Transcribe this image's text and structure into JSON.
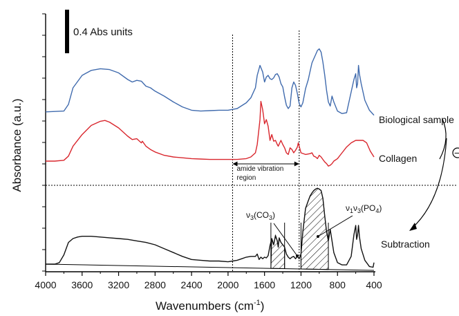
{
  "chart_data": {
    "type": "line",
    "xlabel_main": "Wavenumbers (cm",
    "xlabel_sup": "-1",
    "xlabel_end": ")",
    "ylabel": "Absorbance (a.u.)",
    "xlim": [
      4000,
      400
    ],
    "x_reversed": true,
    "xticks": [
      "4000",
      "3600",
      "3200",
      "2800",
      "2400",
      "2000",
      "1600",
      "1200",
      "800",
      "400"
    ],
    "scale_bar_label": "0.4 Abs units",
    "amide_label_1": "amide vibration",
    "amide_label_2": "region",
    "amide_region": [
      1950,
      1220
    ],
    "co3_label": "ν3(CO3)",
    "co3_region": [
      1530,
      1380
    ],
    "po4_label": "ν1ν3(PO4)",
    "po4_region": [
      1200,
      900
    ],
    "operator_symbol": "−",
    "series": [
      {
        "name": "Biological sample",
        "color": "#3f6aad",
        "x": [
          4000,
          3900,
          3800,
          3750,
          3700,
          3600,
          3500,
          3400,
          3300,
          3200,
          3100,
          3050,
          3000,
          2950,
          2900,
          2850,
          2800,
          2700,
          2600,
          2500,
          2400,
          2300,
          2200,
          2100,
          2000,
          1950,
          1900,
          1800,
          1750,
          1700,
          1680,
          1650,
          1620,
          1600,
          1580,
          1560,
          1540,
          1520,
          1500,
          1480,
          1460,
          1440,
          1420,
          1400,
          1380,
          1360,
          1340,
          1320,
          1300,
          1280,
          1260,
          1240,
          1220,
          1200,
          1180,
          1150,
          1120,
          1100,
          1080,
          1060,
          1040,
          1020,
          1000,
          980,
          960,
          940,
          920,
          900,
          880,
          860,
          840,
          800,
          750,
          700,
          650,
          620,
          600,
          590,
          580,
          570,
          560,
          540,
          500,
          450,
          400
        ],
        "y": [
          0.16,
          0.165,
          0.17,
          0.25,
          0.45,
          0.6,
          0.66,
          0.68,
          0.67,
          0.63,
          0.55,
          0.52,
          0.54,
          0.53,
          0.47,
          0.45,
          0.41,
          0.35,
          0.28,
          0.22,
          0.18,
          0.17,
          0.175,
          0.18,
          0.18,
          0.19,
          0.2,
          0.27,
          0.33,
          0.45,
          0.6,
          0.72,
          0.64,
          0.52,
          0.58,
          0.6,
          0.56,
          0.55,
          0.57,
          0.61,
          0.62,
          0.58,
          0.5,
          0.46,
          0.34,
          0.24,
          0.2,
          0.23,
          0.45,
          0.52,
          0.48,
          0.38,
          0.26,
          0.22,
          0.27,
          0.44,
          0.55,
          0.65,
          0.75,
          0.8,
          0.85,
          0.9,
          0.92,
          0.88,
          0.76,
          0.6,
          0.42,
          0.28,
          0.23,
          0.35,
          0.28,
          0.17,
          0.14,
          0.15,
          0.4,
          0.55,
          0.62,
          0.45,
          0.5,
          0.72,
          0.62,
          0.5,
          0.3,
          0.18,
          0.12
        ]
      },
      {
        "name": "Collagen",
        "color": "#d9262d",
        "x": [
          4000,
          3900,
          3800,
          3750,
          3700,
          3600,
          3500,
          3400,
          3350,
          3300,
          3200,
          3100,
          3050,
          3000,
          2950,
          2940,
          2900,
          2850,
          2800,
          2700,
          2600,
          2500,
          2400,
          2300,
          2200,
          2100,
          2000,
          1950,
          1900,
          1800,
          1750,
          1700,
          1680,
          1650,
          1640,
          1620,
          1600,
          1580,
          1560,
          1540,
          1520,
          1500,
          1480,
          1460,
          1450,
          1420,
          1400,
          1380,
          1360,
          1340,
          1320,
          1300,
          1280,
          1260,
          1240,
          1230,
          1200,
          1150,
          1100,
          1080,
          1060,
          1040,
          1020,
          1000,
          980,
          960,
          940,
          920,
          900,
          880,
          860,
          840,
          800,
          750,
          700,
          650,
          600,
          560,
          520,
          480,
          440,
          400
        ],
        "y": [
          0.0,
          0.0,
          0.01,
          0.06,
          0.18,
          0.32,
          0.43,
          0.48,
          0.49,
          0.47,
          0.4,
          0.3,
          0.26,
          0.27,
          0.22,
          0.24,
          0.18,
          0.14,
          0.11,
          0.07,
          0.05,
          0.04,
          0.03,
          0.025,
          0.02,
          0.02,
          0.02,
          0.02,
          0.02,
          0.03,
          0.05,
          0.1,
          0.2,
          0.5,
          0.72,
          0.62,
          0.45,
          0.5,
          0.42,
          0.25,
          0.32,
          0.24,
          0.25,
          0.2,
          0.18,
          0.25,
          0.2,
          0.16,
          0.1,
          0.08,
          0.16,
          0.14,
          0.1,
          0.13,
          0.17,
          0.22,
          0.1,
          0.08,
          0.09,
          0.1,
          0.06,
          0.05,
          0.03,
          0.07,
          0.05,
          0.02,
          -0.01,
          -0.03,
          -0.06,
          -0.05,
          -0.03,
          0.0,
          0.03,
          0.1,
          0.17,
          0.22,
          0.25,
          0.25,
          0.25,
          0.22,
          0.12,
          0.05
        ]
      },
      {
        "name": "Subtraction",
        "color": "#111111",
        "x": [
          4000,
          3900,
          3850,
          3800,
          3750,
          3700,
          3650,
          3600,
          3500,
          3400,
          3300,
          3200,
          3100,
          3000,
          2900,
          2800,
          2700,
          2600,
          2500,
          2400,
          2300,
          2200,
          2100,
          2000,
          1950,
          1900,
          1850,
          1800,
          1750,
          1700,
          1680,
          1660,
          1640,
          1620,
          1600,
          1580,
          1560,
          1540,
          1520,
          1500,
          1480,
          1460,
          1450,
          1440,
          1420,
          1400,
          1380,
          1360,
          1340,
          1320,
          1300,
          1280,
          1260,
          1240,
          1220,
          1200,
          1180,
          1150,
          1120,
          1100,
          1080,
          1060,
          1040,
          1020,
          1000,
          980,
          960,
          940,
          920,
          900,
          880,
          860,
          840,
          800,
          750,
          700,
          650,
          620,
          600,
          590,
          580,
          570,
          560,
          540,
          500,
          450,
          410,
          400
        ],
        "y": [
          0.0,
          0.0,
          0.02,
          0.12,
          0.28,
          0.33,
          0.35,
          0.36,
          0.36,
          0.35,
          0.34,
          0.33,
          0.32,
          0.3,
          0.28,
          0.25,
          0.2,
          0.15,
          0.1,
          0.06,
          0.05,
          0.04,
          0.04,
          0.03,
          0.04,
          0.05,
          0.07,
          0.09,
          0.1,
          0.1,
          0.13,
          0.06,
          0.09,
          0.07,
          0.09,
          0.08,
          0.11,
          0.24,
          0.33,
          0.25,
          0.37,
          0.3,
          0.22,
          0.34,
          0.28,
          0.25,
          0.22,
          0.13,
          0.09,
          0.07,
          0.09,
          0.1,
          0.07,
          0.1,
          0.07,
          0.13,
          0.42,
          0.72,
          0.82,
          0.88,
          0.92,
          0.95,
          0.97,
          0.98,
          0.97,
          0.95,
          0.85,
          0.62,
          0.42,
          0.3,
          0.45,
          0.3,
          0.15,
          0.02,
          -0.01,
          -0.01,
          0.1,
          0.38,
          0.5,
          0.32,
          0.38,
          0.5,
          0.36,
          0.2,
          0.05,
          -0.03,
          -0.04,
          0.02
        ]
      }
    ]
  }
}
